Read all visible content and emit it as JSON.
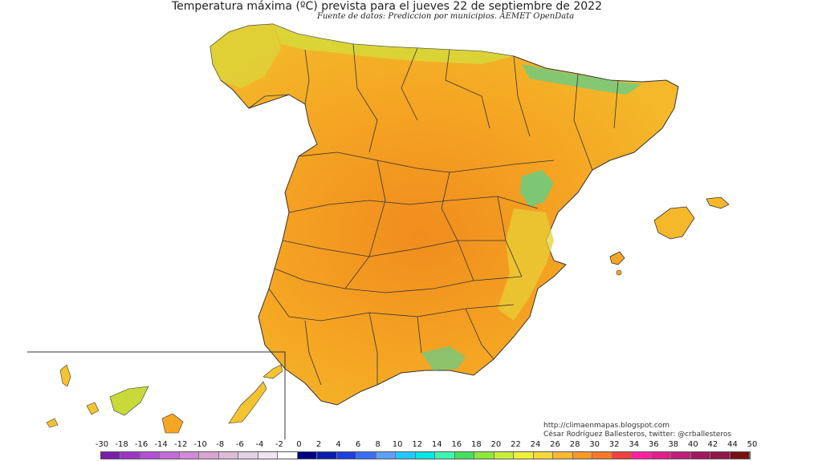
{
  "map": {
    "title": "Temperatura máxima (ºC) prevista para el jueves 22 de septiembre de 2022",
    "subtitle": "Fuente de datos: Prediccion por municipios. AEMET OpenData",
    "credits": {
      "url": "http://climaenmapas.blogspot.com",
      "author": "César Rodríguez Ballesteros, twitter: @crballesteros"
    },
    "colors": {
      "land_main": "#f5a623",
      "land_warm": "#f08c1e",
      "land_mild": "#f4c430",
      "land_cool": "#c8d93a",
      "land_cold": "#5fcf8a",
      "sea": "#ffffff",
      "borders": "#333333"
    }
  },
  "legend": {
    "labels": [
      "-30",
      "-18",
      "-16",
      "-14",
      "-12",
      "-10",
      "-8",
      "-6",
      "-4",
      "-2",
      "0",
      "2",
      "4",
      "6",
      "8",
      "10",
      "12",
      "14",
      "16",
      "18",
      "20",
      "22",
      "24",
      "26",
      "28",
      "30",
      "32",
      "34",
      "36",
      "38",
      "40",
      "42",
      "44",
      "50"
    ],
    "colors": [
      "#7a1fa8",
      "#9b36c4",
      "#b24fd3",
      "#c56bd8",
      "#d08bd8",
      "#d9a4d4",
      "#ddbcd9",
      "#e2d0e4",
      "#eee4f0",
      "#ffffff",
      "#000080",
      "#0a1fb0",
      "#1f3fe0",
      "#3b6ef5",
      "#5ea0ff",
      "#22c8ff",
      "#00e5e5",
      "#3df5b0",
      "#44e060",
      "#8ce83a",
      "#c8f03a",
      "#f0f03a",
      "#f8d838",
      "#f8b830",
      "#f89828",
      "#f87828",
      "#f04040",
      "#ff20a0",
      "#e0208a",
      "#c0207a",
      "#a01860",
      "#901848",
      "#7a1010"
    ]
  }
}
